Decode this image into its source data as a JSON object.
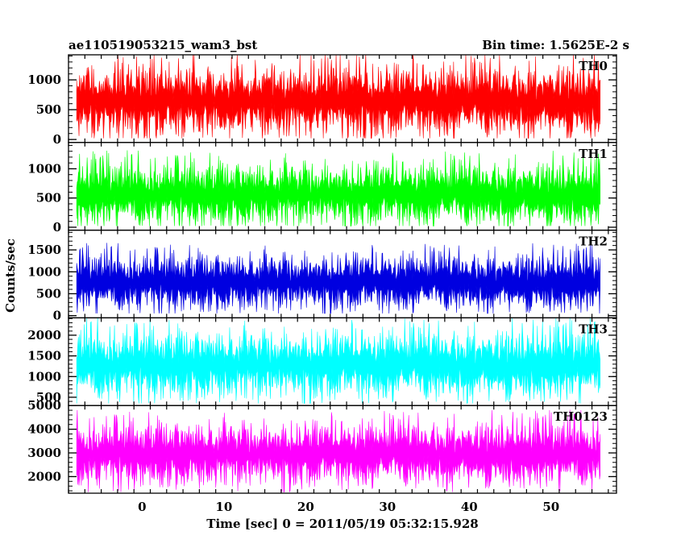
{
  "header": {
    "title": "ae110519053215_wam3_bst",
    "bin_time": "Bin time: 1.5625E-2 s"
  },
  "chart_data": {
    "type": "line",
    "title": "ae110519053215_wam3_bst",
    "xlabel": "Time [sec] 0 = 2011/05/19 05:32:15.928",
    "ylabel": "Counts/sec",
    "xlim": [
      -9,
      58
    ],
    "x_range_data": [
      -8,
      56
    ],
    "x_ticks": [
      0,
      10,
      20,
      30,
      40,
      50
    ],
    "x_tick_labels": [
      "0",
      "10",
      "20",
      "30",
      "40",
      "50"
    ],
    "panels": [
      {
        "name": "TH0",
        "color": "#ff0000",
        "ylim": [
          -50,
          1420
        ],
        "y_ticks": [
          0,
          500,
          1000
        ],
        "y_tick_labels": [
          "0",
          "500",
          "1000"
        ],
        "mean": 640,
        "spread": 230,
        "min": 20,
        "max": 1420
      },
      {
        "name": "TH1",
        "color": "#00ff00",
        "ylim": [
          -50,
          1450
        ],
        "y_ticks": [
          0,
          500,
          1000
        ],
        "y_tick_labels": [
          "0",
          "500",
          "1000"
        ],
        "mean": 560,
        "spread": 210,
        "min": 20,
        "max": 1400
      },
      {
        "name": "TH2",
        "color": "#0000e0",
        "ylim": [
          -50,
          1950
        ],
        "y_ticks": [
          0,
          500,
          1000,
          1500
        ],
        "y_tick_labels": [
          "0",
          "500",
          "1000",
          "1500"
        ],
        "mean": 760,
        "spread": 250,
        "min": 50,
        "max": 1950
      },
      {
        "name": "TH3",
        "color": "#00ffff",
        "ylim": [
          300,
          2420
        ],
        "y_ticks": [
          500,
          1000,
          1500,
          2000
        ],
        "y_tick_labels": [
          "500",
          "1000",
          "1500",
          "2000"
        ],
        "mean": 1280,
        "spread": 320,
        "min": 350,
        "max": 2420
      },
      {
        "name": "TH0123",
        "color": "#ff00ff",
        "ylim": [
          1300,
          5000
        ],
        "y_ticks": [
          2000,
          3000,
          4000,
          5000
        ],
        "y_tick_labels": [
          "2000",
          "3000",
          "4000",
          "5000"
        ],
        "mean": 2950,
        "spread": 520,
        "min": 1350,
        "max": 4950
      }
    ]
  }
}
